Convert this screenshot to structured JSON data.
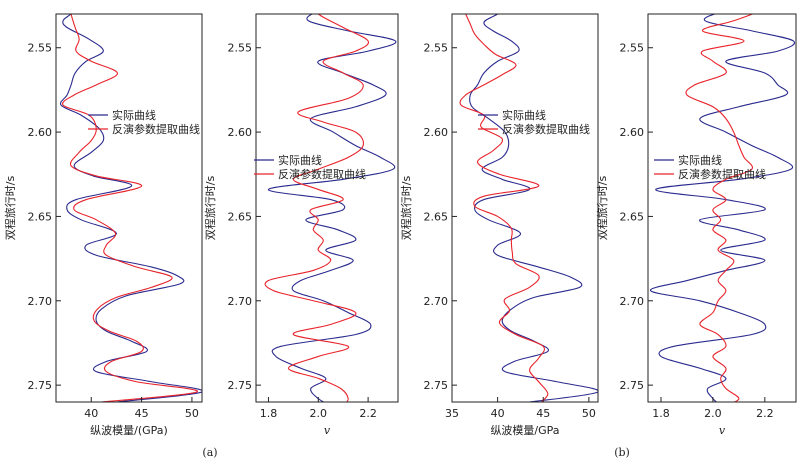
{
  "figure": {
    "label_a": "(a)",
    "label_b": "(b)"
  },
  "colors": {
    "actual": "#2b2b8f",
    "inverted": "#e8242b"
  },
  "chart_data": [
    {
      "type": "line",
      "id": "panel1",
      "ylabel": "双程旅行时/s",
      "xlabel": "纵波模量/(GPa)",
      "xlabel_italic": false,
      "xlim": [
        36.5,
        51
      ],
      "ylim": [
        2.53,
        2.76
      ],
      "xticks": [
        40,
        45,
        50
      ],
      "xtick_labels": [
        "40",
        "45",
        "50"
      ],
      "yticks": [
        2.55,
        2.6,
        2.65,
        2.7,
        2.75
      ],
      "ytick_labels": [
        "2.55",
        "2.60",
        "2.65",
        "2.70",
        "2.75"
      ],
      "legend": [
        "实际曲线",
        "反演参数提取曲线"
      ],
      "legend_position": "upper-middle",
      "series": [
        {
          "name": "实际曲线",
          "color": "#2b2b8f",
          "t": [
            2.522,
            2.53,
            2.534,
            2.538,
            2.545,
            2.552,
            2.558,
            2.565,
            2.572,
            2.578,
            2.584,
            2.59,
            2.598,
            2.605,
            2.612,
            2.62,
            2.626,
            2.632,
            2.64,
            2.646,
            2.652,
            2.66,
            2.667,
            2.673,
            2.68,
            2.685,
            2.69,
            2.697,
            2.705,
            2.712,
            2.718,
            2.724,
            2.73,
            2.736,
            2.742,
            2.748,
            2.754,
            2.76
          ],
          "x": [
            39.8,
            38.0,
            37.2,
            37.6,
            39.8,
            41.2,
            39.5,
            38.4,
            38.0,
            37.6,
            37.0,
            39.0,
            40.8,
            41.2,
            40.0,
            38.3,
            40.2,
            44.0,
            38.5,
            37.6,
            39.0,
            42.5,
            39.5,
            40.5,
            46.0,
            48.5,
            48.8,
            43.5,
            41.0,
            40.5,
            41.5,
            44.0,
            45.5,
            41.5,
            40.5,
            46.0,
            51.0,
            42.5
          ]
        },
        {
          "name": "反演参数提取曲线",
          "color": "#e8242b",
          "t": [
            2.522,
            2.53,
            2.538,
            2.545,
            2.552,
            2.558,
            2.565,
            2.572,
            2.578,
            2.584,
            2.59,
            2.598,
            2.605,
            2.612,
            2.62,
            2.626,
            2.632,
            2.64,
            2.646,
            2.652,
            2.66,
            2.667,
            2.673,
            2.68,
            2.686,
            2.692,
            2.698,
            2.705,
            2.712,
            2.718,
            2.724,
            2.73,
            2.736,
            2.742,
            2.748,
            2.754,
            2.76
          ],
          "x": [
            37.8,
            38.0,
            38.4,
            38.8,
            38.5,
            40.0,
            42.6,
            40.5,
            38.3,
            37.2,
            39.8,
            40.5,
            40.0,
            38.8,
            38.0,
            40.5,
            45.0,
            39.5,
            38.3,
            40.5,
            42.4,
            41.5,
            41.5,
            44.5,
            48.0,
            46.0,
            42.5,
            40.6,
            40.3,
            41.8,
            44.5,
            45.0,
            42.0,
            41.5,
            44.5,
            50.5,
            41.0
          ]
        }
      ]
    },
    {
      "type": "line",
      "id": "panel2",
      "ylabel": "双程旅行时/s",
      "xlabel": "v",
      "xlabel_italic": true,
      "xlim": [
        1.75,
        2.32
      ],
      "ylim": [
        2.53,
        2.76
      ],
      "xticks": [
        1.8,
        2.0,
        2.2
      ],
      "xtick_labels": [
        "1.8",
        "2.0",
        "2.2"
      ],
      "yticks": [
        2.55,
        2.6,
        2.65,
        2.7,
        2.75
      ],
      "ytick_labels": [
        "2.55",
        "2.60",
        "2.65",
        "2.70",
        "2.75"
      ],
      "legend": [
        "实际曲线",
        "反演参数提取曲线"
      ],
      "legend_position": "middle-left",
      "series": [
        {
          "name": "实际曲线",
          "color": "#2b2b8f",
          "t": [
            2.522,
            2.528,
            2.534,
            2.54,
            2.546,
            2.552,
            2.558,
            2.565,
            2.572,
            2.578,
            2.585,
            2.592,
            2.6,
            2.608,
            2.615,
            2.622,
            2.628,
            2.634,
            2.64,
            2.646,
            2.652,
            2.658,
            2.664,
            2.67,
            2.676,
            2.682,
            2.688,
            2.694,
            2.7,
            2.707,
            2.714,
            2.72,
            2.727,
            2.733,
            2.74,
            2.746,
            2.752,
            2.758,
            2.762
          ],
          "x": [
            2.1,
            2.0,
            1.96,
            2.12,
            2.31,
            2.2,
            2.0,
            2.1,
            2.22,
            2.27,
            2.15,
            1.97,
            2.06,
            2.15,
            2.25,
            2.3,
            2.1,
            1.8,
            2.05,
            2.1,
            1.95,
            2.08,
            2.15,
            2.03,
            2.14,
            2.05,
            1.93,
            1.9,
            2.02,
            2.12,
            2.21,
            2.15,
            1.85,
            1.83,
            1.93,
            2.03,
            1.97,
            2.0,
            2.05
          ]
        },
        {
          "name": "反演参数提取曲线",
          "color": "#e8242b",
          "t": [
            2.522,
            2.53,
            2.538,
            2.546,
            2.552,
            2.558,
            2.565,
            2.572,
            2.58,
            2.588,
            2.594,
            2.6,
            2.608,
            2.615,
            2.622,
            2.628,
            2.634,
            2.64,
            2.646,
            2.652,
            2.658,
            2.664,
            2.67,
            2.676,
            2.682,
            2.688,
            2.694,
            2.7,
            2.707,
            2.714,
            2.72,
            2.727,
            2.733,
            2.74,
            2.746,
            2.752,
            2.758,
            2.762
          ],
          "x": [
            1.95,
            2.0,
            2.1,
            2.2,
            2.15,
            2.02,
            2.1,
            2.18,
            2.12,
            1.92,
            2.02,
            2.15,
            2.18,
            2.12,
            2.0,
            1.9,
            2.0,
            2.1,
            1.97,
            2.0,
            1.98,
            2.02,
            2.0,
            2.05,
            1.98,
            1.8,
            1.82,
            1.98,
            2.15,
            2.05,
            1.9,
            2.12,
            2.0,
            1.88,
            2.0,
            2.09,
            2.12,
            2.1
          ]
        }
      ]
    },
    {
      "type": "line",
      "id": "panel3",
      "ylabel": "双程旅行时/s",
      "xlabel": "纵波模量/GPa",
      "xlabel_italic": false,
      "xlim": [
        35,
        51
      ],
      "ylim": [
        2.53,
        2.76
      ],
      "xticks": [
        35,
        40,
        45,
        50
      ],
      "xtick_labels": [
        "35",
        "40",
        "45",
        "50"
      ],
      "yticks": [
        2.55,
        2.6,
        2.65,
        2.7,
        2.75
      ],
      "ytick_labels": [
        "2.55",
        "2.60",
        "2.65",
        "2.70",
        "2.75"
      ],
      "legend": [
        "实际曲线",
        "反演参数提取曲线"
      ],
      "legend_position": "upper-middle",
      "series": [
        {
          "name": "实际曲线",
          "color": "#2b2b8f",
          "t": [
            2.522,
            2.53,
            2.535,
            2.54,
            2.546,
            2.552,
            2.558,
            2.565,
            2.572,
            2.578,
            2.585,
            2.592,
            2.6,
            2.608,
            2.615,
            2.622,
            2.628,
            2.634,
            2.64,
            2.646,
            2.652,
            2.66,
            2.667,
            2.673,
            2.68,
            2.686,
            2.692,
            2.698,
            2.705,
            2.712,
            2.718,
            2.724,
            2.73,
            2.736,
            2.742,
            2.748,
            2.754,
            2.76
          ],
          "x": [
            42.5,
            40.0,
            38.5,
            39.5,
            41.5,
            42.3,
            40.0,
            38.5,
            37.8,
            37.0,
            37.2,
            39.0,
            40.8,
            41.2,
            40.5,
            38.3,
            40.5,
            43.5,
            38.5,
            37.5,
            39.0,
            42.5,
            40.0,
            40.0,
            44.5,
            48.0,
            49.0,
            44.0,
            41.5,
            40.5,
            41.5,
            44.0,
            45.5,
            41.8,
            40.8,
            46.5,
            51.0,
            43.5
          ]
        },
        {
          "name": "反演参数提取曲线",
          "color": "#e8242b",
          "t": [
            2.522,
            2.53,
            2.536,
            2.542,
            2.548,
            2.554,
            2.56,
            2.566,
            2.572,
            2.578,
            2.584,
            2.59,
            2.597,
            2.604,
            2.611,
            2.618,
            2.625,
            2.632,
            2.638,
            2.644,
            2.65,
            2.657,
            2.664,
            2.671,
            2.678,
            2.685,
            2.692,
            2.699,
            2.706,
            2.713,
            2.72,
            2.727,
            2.734,
            2.741,
            2.748,
            2.755,
            2.76
          ],
          "x": [
            35.8,
            36.5,
            37.0,
            37.5,
            38.5,
            39.8,
            42.0,
            40.5,
            38.5,
            36.5,
            36.0,
            38.5,
            38.2,
            40.5,
            39.5,
            37.8,
            40.2,
            44.5,
            38.5,
            37.5,
            40.0,
            41.5,
            41.5,
            41.6,
            42.0,
            44.5,
            43.5,
            40.8,
            41.3,
            40.2,
            42.0,
            45.0,
            44.5,
            43.5,
            44.5,
            45.5,
            44.8
          ]
        }
      ]
    },
    {
      "type": "line",
      "id": "panel4",
      "ylabel": "双程旅行时/s",
      "xlabel": "v",
      "xlabel_italic": true,
      "xlim": [
        1.75,
        2.32
      ],
      "ylim": [
        2.53,
        2.76
      ],
      "xticks": [
        1.8,
        2.0,
        2.2
      ],
      "xtick_labels": [
        "1.8",
        "2.0",
        "2.2"
      ],
      "yticks": [
        2.55,
        2.6,
        2.65,
        2.7,
        2.75
      ],
      "ytick_labels": [
        "2.55",
        "2.60",
        "2.65",
        "2.70",
        "2.75"
      ],
      "legend": [
        "实际曲线",
        "反演参数提取曲线"
      ],
      "legend_position": "middle-left",
      "series": [
        {
          "name": "实际曲线",
          "color": "#2b2b8f",
          "t": [
            2.522,
            2.528,
            2.534,
            2.54,
            2.546,
            2.552,
            2.558,
            2.565,
            2.572,
            2.578,
            2.585,
            2.592,
            2.6,
            2.608,
            2.615,
            2.622,
            2.628,
            2.634,
            2.64,
            2.646,
            2.652,
            2.658,
            2.664,
            2.67,
            2.676,
            2.682,
            2.688,
            2.694,
            2.7,
            2.707,
            2.714,
            2.72,
            2.727,
            2.733,
            2.74,
            2.746,
            2.752,
            2.758,
            2.762
          ],
          "x": [
            2.22,
            2.05,
            1.97,
            2.15,
            2.31,
            2.25,
            2.05,
            2.2,
            2.25,
            2.28,
            2.1,
            1.95,
            2.05,
            2.15,
            2.25,
            2.3,
            2.1,
            1.78,
            2.05,
            2.2,
            1.95,
            2.1,
            2.2,
            2.03,
            2.2,
            2.05,
            1.9,
            1.76,
            1.95,
            2.1,
            2.2,
            2.15,
            1.85,
            1.8,
            1.95,
            2.05,
            1.98,
            2.0,
            2.03
          ]
        },
        {
          "name": "反演参数提取曲线",
          "color": "#e8242b",
          "t": [
            2.522,
            2.528,
            2.534,
            2.54,
            2.546,
            2.552,
            2.558,
            2.565,
            2.572,
            2.578,
            2.585,
            2.592,
            2.6,
            2.608,
            2.615,
            2.622,
            2.628,
            2.634,
            2.64,
            2.646,
            2.652,
            2.658,
            2.664,
            2.67,
            2.676,
            2.682,
            2.688,
            2.694,
            2.7,
            2.707,
            2.714,
            2.72,
            2.727,
            2.733,
            2.74,
            2.746,
            2.752,
            2.758,
            2.762
          ],
          "x": [
            2.2,
            2.18,
            2.08,
            1.96,
            2.12,
            1.96,
            2.0,
            2.05,
            1.93,
            1.9,
            2.0,
            2.05,
            2.08,
            2.1,
            2.12,
            2.15,
            2.05,
            2.0,
            2.05,
            2.0,
            2.03,
            2.0,
            2.05,
            2.02,
            2.08,
            2.05,
            2.02,
            2.05,
            2.02,
            2.0,
            1.95,
            2.02,
            2.05,
            2.0,
            2.05,
            2.03,
            2.05,
            2.1,
            2.05
          ]
        }
      ]
    }
  ]
}
